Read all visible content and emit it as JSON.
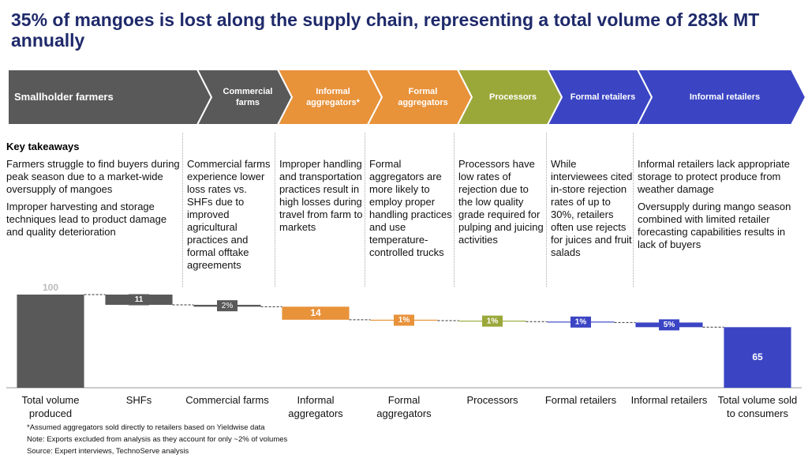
{
  "header": {
    "title": "35% of mangoes is lost along the supply chain, representing a total volume of 283k MT annually"
  },
  "stages": [
    {
      "label": "Smallholder farmers",
      "color": "#595959"
    },
    {
      "label": "Commercial farms",
      "color": "#595959"
    },
    {
      "label": "Informal aggregators*",
      "color": "#e8923a"
    },
    {
      "label": "Formal aggregators",
      "color": "#e8923a"
    },
    {
      "label": "Processors",
      "color": "#9aa83a"
    },
    {
      "label": "Formal retailers",
      "color": "#3b45c4"
    },
    {
      "label": "Informal retailers",
      "color": "#3b45c4"
    }
  ],
  "takeaways": {
    "heading": "Key takeaways",
    "columns": [
      [
        "Farmers struggle to find buyers during peak season due to a market-wide oversupply of mangoes",
        "Improper harvesting and storage techniques lead to product damage and quality deterioration"
      ],
      [
        "Commercial farms experience lower loss rates vs. SHFs due to improved agricultural practices and formal offtake agreements"
      ],
      [
        "Improper handling and transportation practices result in high losses during travel from farm to markets"
      ],
      [
        "Formal aggregators are more likely to employ proper handling practices and use temperature-controlled trucks"
      ],
      [
        "Processors have low rates of rejection due to the low quality grade required for pulping and juicing activities"
      ],
      [
        "While interviewees cited in-store rejection rates of up to 30%, retailers often use rejects for juices and fruit salads"
      ],
      [
        "Informal retailers lack appropriate storage to protect produce from weather damage",
        "Oversupply during mango season combined with limited retailer forecasting capabilities results in lack of buyers"
      ]
    ]
  },
  "chart_data": {
    "type": "waterfall",
    "categories": [
      "Total volume produced",
      "SHFs",
      "Commercial farms",
      "Informal aggregators",
      "Formal aggregators",
      "Processors",
      "Formal retailers",
      "Informal retailers",
      "Total volume sold to consumers"
    ],
    "values": [
      100,
      11,
      2,
      14,
      1,
      1,
      1,
      5,
      65
    ],
    "value_labels": [
      "100",
      "11",
      "2%",
      "14",
      "1%",
      "1%",
      "1%",
      "5%",
      "65"
    ],
    "colors": [
      "#595959",
      "#595959",
      "#595959",
      "#e8923a",
      "#e8923a",
      "#9aa83a",
      "#3b45c4",
      "#3b45c4",
      "#3b45c4"
    ]
  },
  "footnotes": [
    "*Assumed aggregators sold directly to retailers based on Yieldwise data",
    "Note: Exports excluded from analysis as they account for only ~2% of volumes",
    "Source: Expert interviews, TechnoServe analysis"
  ]
}
